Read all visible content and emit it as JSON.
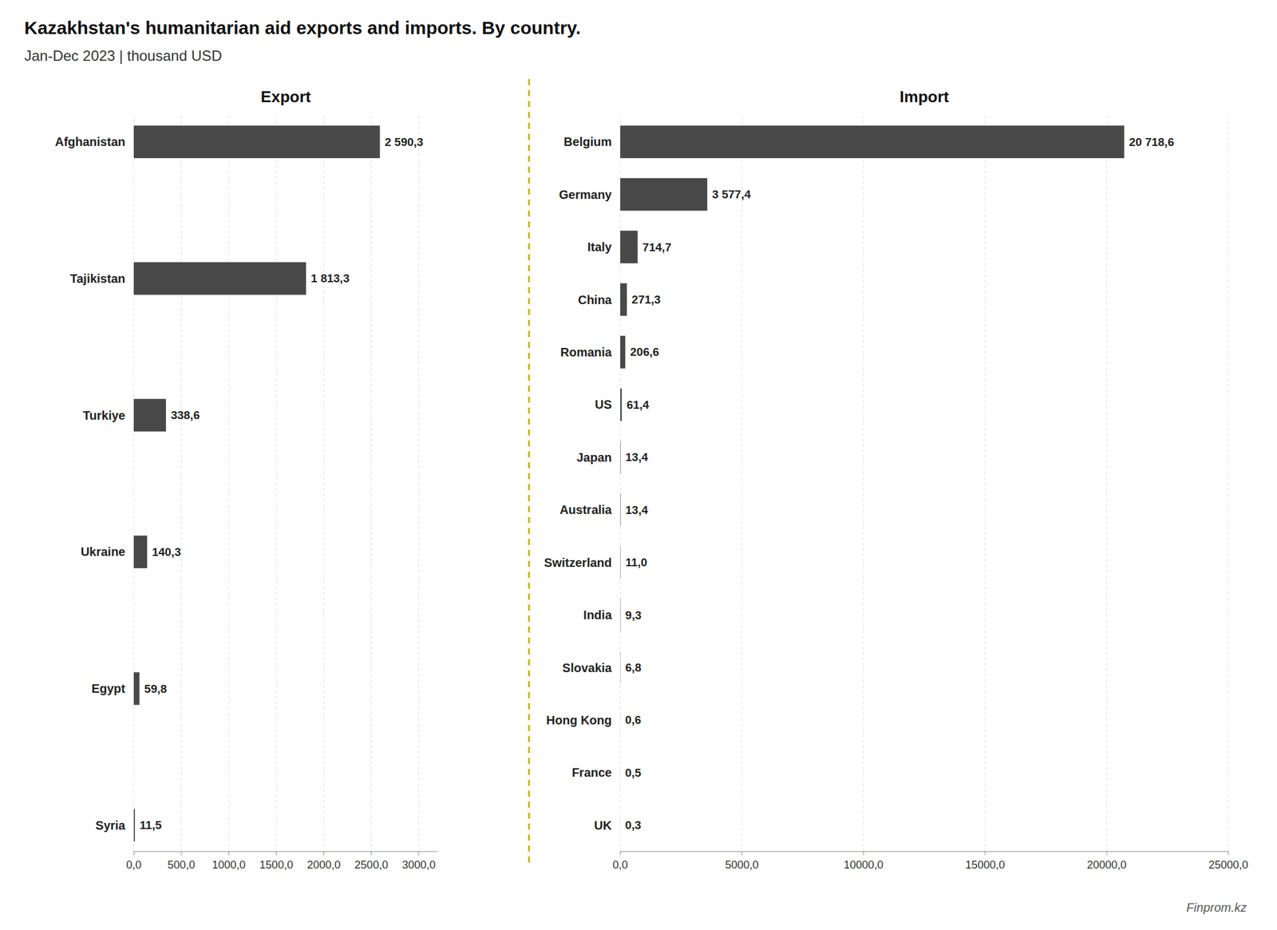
{
  "chart_data": [
    {
      "type": "bar",
      "suptitle": "Kazakhstan's humanitarian aid exports and imports. By country.",
      "subtitle": "Jan-Dec 2023 | thousand USD",
      "annotations": [
        {
          "text": "Finprom.kz"
        }
      ],
      "title": "Export",
      "orientation": "horizontal",
      "categories": [
        "Afghanistan",
        "Tajikistan",
        "Turkiye",
        "Ukraine",
        "Egypt",
        "Syria"
      ],
      "values": [
        2590.3,
        1813.3,
        338.6,
        140.3,
        59.8,
        11.5
      ],
      "value_labels": [
        "2 590,3",
        "1 813,3",
        "338,6",
        "140,3",
        "59,8",
        "11,5"
      ],
      "data_labels": true,
      "color": "#484848",
      "xlim": [
        0,
        3200
      ],
      "xticks": [
        {
          "value": 0,
          "label": "0,0"
        },
        {
          "value": 500,
          "label": "500,0"
        },
        {
          "value": 1000,
          "label": "1000,0"
        },
        {
          "value": 1500,
          "label": "1500,0"
        },
        {
          "value": 2000,
          "label": "2000,0"
        },
        {
          "value": 2500,
          "label": "2500,0"
        },
        {
          "value": 3000,
          "label": "3000,0"
        }
      ],
      "grid": true
    },
    {
      "type": "bar",
      "title": "Import",
      "orientation": "horizontal",
      "categories": [
        "Belgium",
        "Germany",
        "Italy",
        "China",
        "Romania",
        "US",
        "Japan",
        "Australia",
        "Switzerland",
        "India",
        "Slovakia",
        "Hong Kong",
        "France",
        "UK"
      ],
      "values": [
        20718.6,
        3577.4,
        714.7,
        271.3,
        206.6,
        61.4,
        13.4,
        13.4,
        11.0,
        9.3,
        6.8,
        0.6,
        0.5,
        0.3
      ],
      "value_labels": [
        "20 718,6",
        "3 577,4",
        "714,7",
        "271,3",
        "206,6",
        "61,4",
        "13,4",
        "13,4",
        "11,0",
        "9,3",
        "6,8",
        "0,6",
        "0,5",
        "0,3"
      ],
      "data_labels": true,
      "color": "#484848",
      "xlim": [
        0,
        25000
      ],
      "xticks": [
        {
          "value": 0,
          "label": "0,0"
        },
        {
          "value": 5000,
          "label": "5000,0"
        },
        {
          "value": 10000,
          "label": "10000,0"
        },
        {
          "value": 15000,
          "label": "15000,0"
        },
        {
          "value": 20000,
          "label": "20000,0"
        },
        {
          "value": 25000,
          "label": "25000,0"
        }
      ],
      "grid": true
    }
  ]
}
